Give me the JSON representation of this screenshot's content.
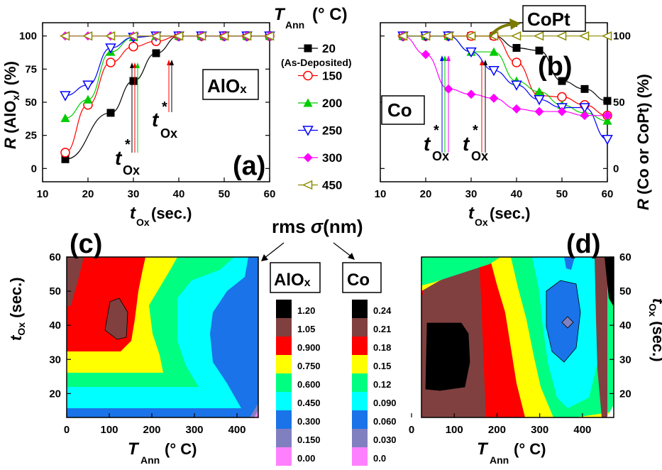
{
  "chart_data": [
    {
      "panel": "(a)",
      "type": "line",
      "inset_label": "AlOx",
      "ylabel": "R (AlO_x) (%)",
      "xlabel": "t_Ox (sec.)",
      "xlim": [
        10,
        60
      ],
      "ylim": [
        -10,
        110
      ],
      "x_ticks": [
        10,
        20,
        30,
        40,
        50,
        60
      ],
      "y_ticks": [
        0,
        25,
        50,
        75,
        100
      ],
      "annotations": [
        "t*Ox",
        "t*Ox"
      ],
      "series": [
        {
          "name": "20",
          "color": "#000000",
          "marker": "square-filled",
          "x": [
            15,
            25,
            30,
            35,
            40,
            45,
            50,
            55,
            60
          ],
          "y": [
            7,
            42,
            66,
            87,
            100,
            100,
            100,
            100,
            100
          ]
        },
        {
          "name": "150",
          "color": "#ff0000",
          "marker": "circle-open",
          "x": [
            15,
            20,
            25,
            30,
            35,
            40,
            45,
            50,
            55,
            60
          ],
          "y": [
            12,
            48,
            80,
            92,
            96,
            100,
            100,
            100,
            100,
            100
          ]
        },
        {
          "name": "200",
          "color": "#00cc00",
          "marker": "triangle-up-filled",
          "x": [
            15,
            20,
            25,
            30,
            35,
            40,
            45,
            50,
            55,
            60
          ],
          "y": [
            38,
            52,
            88,
            99,
            100,
            100,
            100,
            100,
            100,
            100
          ]
        },
        {
          "name": "250",
          "color": "#0000ff",
          "marker": "triangle-down-open",
          "x": [
            15,
            20,
            25,
            30,
            35,
            40,
            45,
            50,
            55,
            60
          ],
          "y": [
            55,
            63,
            91,
            99,
            100,
            100,
            100,
            100,
            100,
            100
          ]
        },
        {
          "name": "300",
          "color": "#ff00ff",
          "marker": "diamond-filled",
          "x": [
            15,
            20,
            25,
            30,
            35,
            40,
            45,
            50,
            55,
            60
          ],
          "y": [
            100,
            100,
            100,
            100,
            100,
            100,
            100,
            100,
            100,
            100
          ]
        },
        {
          "name": "450",
          "color": "#8b8b00",
          "marker": "triangle-left-open",
          "x": [
            15,
            20,
            25,
            30,
            35,
            40,
            45,
            50,
            55,
            60
          ],
          "y": [
            100,
            100,
            100,
            100,
            100,
            100,
            100,
            100,
            100,
            100
          ]
        }
      ]
    },
    {
      "panel": "(b)",
      "type": "line",
      "inset_labels": [
        "Co",
        "CoPt"
      ],
      "ylabel": "R (Co or CoPt) (%)",
      "xlabel": "t_Ox (sec.)",
      "xlim": [
        10,
        60
      ],
      "ylim": [
        -10,
        110
      ],
      "x_ticks": [
        10,
        20,
        30,
        40,
        50,
        60
      ],
      "y_ticks": [
        0,
        50,
        100
      ],
      "annotations": [
        "t*Ox",
        "t*Ox"
      ],
      "series": [
        {
          "name": "20",
          "color": "#000000",
          "marker": "square-filled",
          "x": [
            15,
            20,
            25,
            30,
            35,
            40,
            45,
            50,
            55,
            60
          ],
          "y": [
            100,
            100,
            100,
            100,
            100,
            91,
            89,
            66,
            60,
            51
          ]
        },
        {
          "name": "150",
          "color": "#ff0000",
          "marker": "circle-open",
          "x": [
            15,
            20,
            25,
            30,
            35,
            40,
            45,
            50,
            55,
            60
          ],
          "y": [
            100,
            100,
            100,
            100,
            100,
            80,
            55,
            54,
            48,
            40
          ]
        },
        {
          "name": "200",
          "color": "#00cc00",
          "marker": "triangle-up-filled",
          "x": [
            15,
            20,
            25,
            30,
            35,
            40,
            45,
            50,
            55,
            60
          ],
          "y": [
            100,
            100,
            100,
            88,
            88,
            66,
            58,
            48,
            42,
            36
          ]
        },
        {
          "name": "250",
          "color": "#0000ff",
          "marker": "triangle-down-open",
          "x": [
            15,
            20,
            25,
            30,
            35,
            40,
            45,
            50,
            55,
            60
          ],
          "y": [
            100,
            100,
            100,
            88,
            74,
            63,
            52,
            46,
            46,
            22
          ]
        },
        {
          "name": "300",
          "color": "#ff00ff",
          "marker": "diamond-filled",
          "x": [
            15,
            20,
            25,
            30,
            35,
            40,
            45,
            50,
            55,
            60
          ],
          "y": [
            100,
            86,
            60,
            56,
            53,
            45,
            43,
            43,
            40,
            40
          ]
        },
        {
          "name": "450",
          "color": "#8b8b00",
          "marker": "triangle-left-open",
          "x": [
            15,
            20,
            25,
            30,
            35,
            40,
            45,
            50,
            55,
            60
          ],
          "y": [
            100,
            100,
            100,
            100,
            100,
            100,
            100,
            100,
            100,
            100
          ]
        }
      ]
    },
    {
      "panel": "(c)",
      "type": "heatmap",
      "colorbar_title": "AlOx",
      "xlabel": "T_Ann (°C)",
      "ylabel": "t_Ox (sec.)",
      "xlim": [
        0,
        450
      ],
      "ylim": [
        13,
        60
      ],
      "x_ticks": [
        0,
        100,
        200,
        300,
        400
      ],
      "y_ticks": [
        20,
        30,
        40,
        50,
        60
      ],
      "levels": [
        "1.20",
        "1.05",
        "0.900",
        "0.750",
        "0.600",
        "0.450",
        "0.300",
        "0.150",
        "0.00"
      ],
      "level_values": [
        1.2,
        1.05,
        0.9,
        0.75,
        0.6,
        0.45,
        0.3,
        0.15,
        0.0
      ]
    },
    {
      "panel": "(d)",
      "type": "heatmap",
      "colorbar_title": "Co",
      "xlabel": "T_Ann (°C)",
      "ylabel": "t_Ox (sec.)",
      "xlim": [
        0,
        450
      ],
      "ylim": [
        13,
        60
      ],
      "x_ticks": [
        0,
        100,
        200,
        300,
        400
      ],
      "y_ticks": [
        20,
        30,
        40,
        50,
        60
      ],
      "levels": [
        "0.24",
        "0.21",
        "0.18",
        "0.15",
        "0.12",
        "0.090",
        "0.060",
        "0.030",
        "0.0"
      ],
      "level_values": [
        0.24,
        0.21,
        0.18,
        0.15,
        0.12,
        0.09,
        0.06,
        0.03,
        0.0
      ]
    }
  ],
  "legend": {
    "title": "T_Ann (°C)",
    "entries": [
      {
        "label": "20",
        "sublabel": "(As-Deposited)",
        "color": "#000000",
        "marker": "square-filled"
      },
      {
        "label": "150",
        "color": "#ff0000",
        "marker": "circle-open"
      },
      {
        "label": "200",
        "color": "#00cc00",
        "marker": "triangle-up-filled"
      },
      {
        "label": "250",
        "color": "#0000ff",
        "marker": "triangle-down-open"
      },
      {
        "label": "300",
        "color": "#ff00ff",
        "marker": "diamond-filled"
      },
      {
        "label": "450",
        "color": "#8b8b00",
        "marker": "triangle-left-open"
      }
    ]
  },
  "rms_label": "rms σ(nm)",
  "colors": {
    "contour": [
      "#ff80ff",
      "#8080c0",
      "#1a73e8",
      "#00ffff",
      "#00ff80",
      "#ffff00",
      "#ff0000",
      "#804040",
      "#000000"
    ],
    "copt_arrow": "#7a7a00"
  },
  "panel_labels": {
    "a": "(a)",
    "b": "(b)",
    "c": "(c)",
    "d": "(d)"
  }
}
